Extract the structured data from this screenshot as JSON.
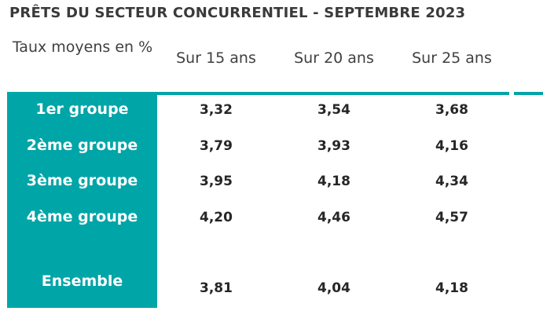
{
  "title": "PRÊTS DU SECTEUR CONCURRENTIEL - SEPTEMBRE 2023",
  "table": {
    "corner_label": "Taux moyens en %",
    "columns": [
      "Sur 15 ans",
      "Sur 20 ans",
      "Sur 25 ans"
    ],
    "rows": [
      {
        "label": "1er groupe",
        "values": [
          "3,32",
          "3,54",
          "3,68"
        ]
      },
      {
        "label": "2ème groupe",
        "values": [
          "3,79",
          "3,93",
          "4,16"
        ]
      },
      {
        "label": "3ème groupe",
        "values": [
          "3,95",
          "4,18",
          "4,34"
        ]
      },
      {
        "label": "4ème groupe",
        "values": [
          "4,20",
          "4,46",
          "4,57"
        ]
      },
      {
        "label": "Ensemble",
        "values": [
          "3,81",
          "4,04",
          "4,18"
        ]
      }
    ]
  },
  "colors": {
    "accent": "#00a5a8",
    "text": "#404040",
    "label_text": "#ffffff"
  }
}
